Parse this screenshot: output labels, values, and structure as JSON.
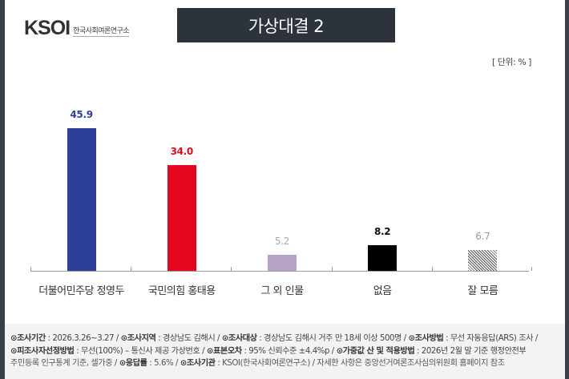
{
  "logo": {
    "mark": "KSOI",
    "text": "한국사회여론연구소"
  },
  "header": {
    "title": "가상대결 2",
    "unit": "[ 단위: % ]"
  },
  "chart_data": {
    "type": "bar",
    "title": "가상대결 2",
    "unit": "%",
    "categories": [
      "더불어민주당 정영두",
      "국민의힘 홍태용",
      "그 외 인물",
      "없음",
      "잘 모름"
    ],
    "values": [
      45.9,
      34.0,
      5.2,
      8.2,
      6.7
    ],
    "value_labels": [
      "45.9",
      "34.0",
      "5.2",
      "8.2",
      "6.7"
    ],
    "colors": [
      "#2e3f98",
      "#e3081f",
      "#b9a2c8",
      "#000000",
      "hatch"
    ],
    "label_colors": [
      "#2e3f98",
      "#e3081f",
      "#b2a2c2",
      "#111111",
      "#9a9a9a"
    ],
    "xlabel": "",
    "ylabel": "",
    "grid": false,
    "legend": false
  },
  "footer": {
    "period_label": "⊙조사기간",
    "period": " : 2026.3.26~3.27 / ",
    "region_label": "⊙조사지역",
    "region": " : 경상남도 김해시 / ",
    "target_label": "⊙조사대상",
    "target": " : 경상남도 김해시 거주 만 18세 이상 500명 / ",
    "method_label": "⊙조사방법",
    "method": " : 무선 자동응답(ARS) 조사 /",
    "sampling_label": "⊙피조사자선정방법",
    "sampling": " : 무선(100%) – 통신사 제공 가상번호 / ",
    "error_label": "⊙표본오차",
    "error": " : 95% 신뢰수준 ±4.4%p / ",
    "weight_label": "⊙가중값 산 및 적용방법",
    "weight": " : 2026년 2월 말 기준 행정안전부",
    "weight_cont": "주민등록 인구통계 기준, 셀가중 / ",
    "response_label": "⊙응답률",
    "response": " : 5.6% / ",
    "org_label": "⊙조사기관",
    "org": " : KSOI(한국사회여론연구소) ",
    "notice": "/ 자세한 사항은 중앙선거여론조사심의위원회 홈페이지 참조"
  }
}
